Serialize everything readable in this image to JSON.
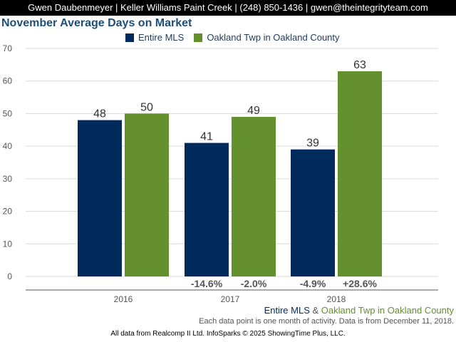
{
  "header": {
    "text": "Gwen Daubenmeyer | Keller Williams Paint Creek | (248) 850-1436 | gwen@theintegrityteam.com"
  },
  "chart_data": {
    "type": "bar",
    "title": "November Average Days on Market",
    "categories": [
      "2016",
      "2017",
      "2018"
    ],
    "series": [
      {
        "name": "Entire MLS",
        "color": "#002b5c",
        "values": [
          48,
          41,
          39
        ],
        "changes": [
          "",
          "-14.6%",
          "-4.9%"
        ]
      },
      {
        "name": "Oakland Twp in Oakland County",
        "color": "#65902e",
        "values": [
          50,
          49,
          63
        ],
        "changes": [
          "",
          "-2.0%",
          "+28.6%"
        ]
      }
    ],
    "yticks": [
      0,
      10,
      20,
      30,
      40,
      50,
      60,
      70
    ],
    "ylim": [
      0,
      70
    ],
    "grid": true,
    "legend_position": "top"
  },
  "footer": {
    "series_a": "Entire MLS",
    "amp": " & ",
    "series_b": "Oakland Twp in Oakland County",
    "note": "Each data point is one month of activity. Data is from December 11, 2018.",
    "source": "All data from Realcomp II Ltd. InfoSparks © 2025 ShowingTime Plus, LLC."
  }
}
